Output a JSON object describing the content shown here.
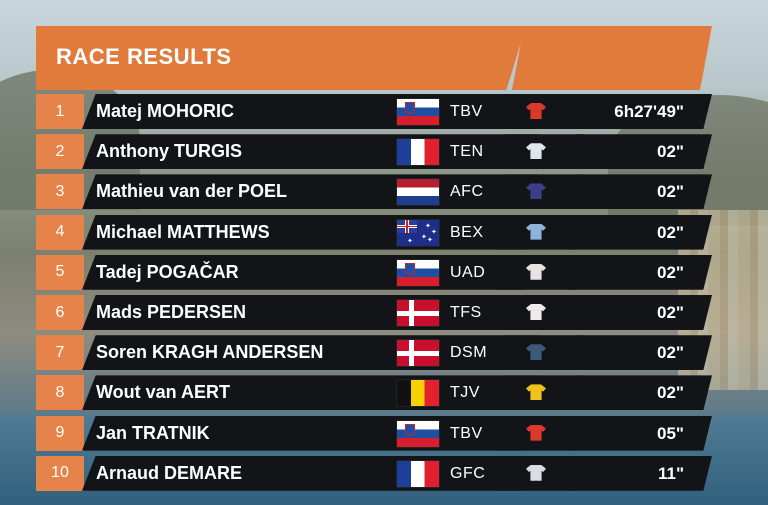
{
  "header": {
    "title": "RACE RESULTS"
  },
  "colors": {
    "accent": "#e07b3c",
    "row_bg": "#121418"
  },
  "results": [
    {
      "rank": "1",
      "name": "Matej MOHORIC",
      "flag": "si",
      "team": "TBV",
      "jersey_color": "#d93a2b",
      "time": "6h27'49\""
    },
    {
      "rank": "2",
      "name": "Anthony TURGIS",
      "flag": "fr",
      "team": "TEN",
      "jersey_color": "#dfe6ea",
      "time": "02\""
    },
    {
      "rank": "3",
      "name": "Mathieu van der POEL",
      "flag": "nl",
      "team": "AFC",
      "jersey_color": "#3b3f86",
      "time": "02\""
    },
    {
      "rank": "4",
      "name": "Michael MATTHEWS",
      "flag": "au",
      "team": "BEX",
      "jersey_color": "#8fb3d8",
      "time": "02\""
    },
    {
      "rank": "5",
      "name": "Tadej POGAČAR",
      "flag": "si",
      "team": "UAD",
      "jersey_color": "#e8e2e2",
      "time": "02\""
    },
    {
      "rank": "6",
      "name": "Mads PEDERSEN",
      "flag": "dk",
      "team": "TFS",
      "jersey_color": "#f0e9e9",
      "time": "02\""
    },
    {
      "rank": "7",
      "name": "Soren KRAGH ANDERSEN",
      "flag": "dk",
      "team": "DSM",
      "jersey_color": "#3b5b78",
      "time": "02\""
    },
    {
      "rank": "8",
      "name": "Wout van AERT",
      "flag": "be",
      "team": "TJV",
      "jersey_color": "#f1c21b",
      "time": "02\""
    },
    {
      "rank": "9",
      "name": "Jan TRATNIK",
      "flag": "si",
      "team": "TBV",
      "jersey_color": "#d93a2b",
      "time": "05\""
    },
    {
      "rank": "10",
      "name": "Arnaud DEMARE",
      "flag": "fr",
      "team": "GFC",
      "jersey_color": "#d9dde6",
      "time": "11\""
    }
  ]
}
